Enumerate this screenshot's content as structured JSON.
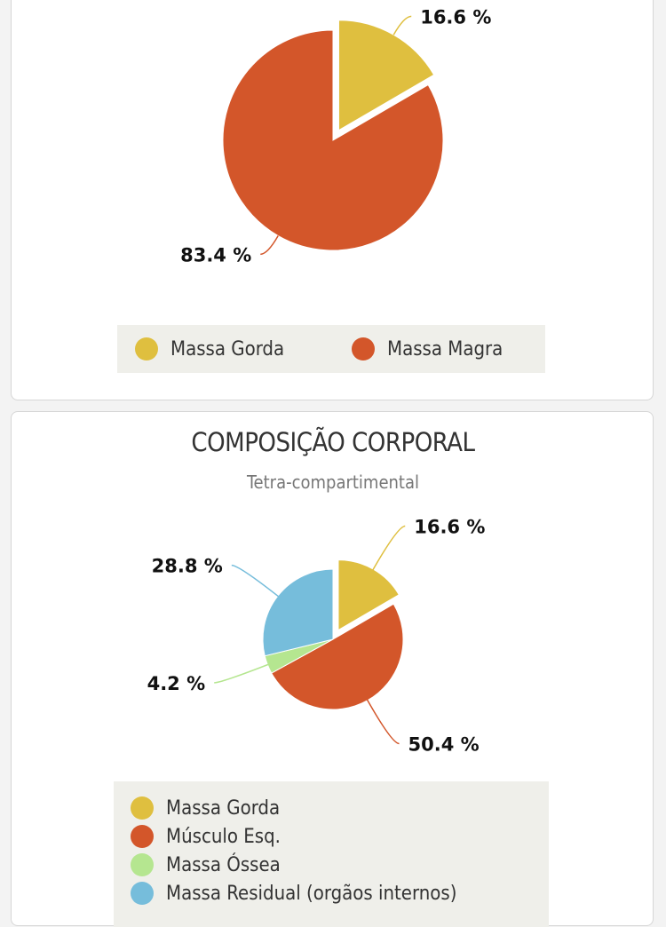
{
  "chart_data": [
    {
      "type": "pie",
      "title": "",
      "series": [
        {
          "categories": [
            "Massa Gorda",
            "Massa Magra"
          ],
          "values": [
            16.6,
            83.4
          ],
          "labels": [
            "16.6 %",
            "83.4 %"
          ],
          "colors": [
            "#dfbf3f",
            "#d3562a"
          ]
        }
      ],
      "exploded": [
        "Massa Gorda"
      ],
      "legend": "bottom"
    },
    {
      "type": "pie",
      "title": "COMPOSIÇÃO CORPORAL",
      "subtitle": "Tetra-compartimental",
      "series": [
        {
          "categories": [
            "Massa Gorda",
            "Músculo Esq.",
            "Massa Óssea",
            "Massa Residual (orgãos internos)"
          ],
          "values": [
            16.6,
            50.4,
            4.2,
            28.8
          ],
          "labels": [
            "16.6 %",
            "50.4 %",
            "4.2 %",
            "28.8 %"
          ],
          "colors": [
            "#dfbf3f",
            "#d3562a",
            "#b5e690",
            "#76bddb"
          ]
        }
      ],
      "exploded": [
        "Massa Gorda"
      ],
      "legend": "bottom"
    }
  ]
}
